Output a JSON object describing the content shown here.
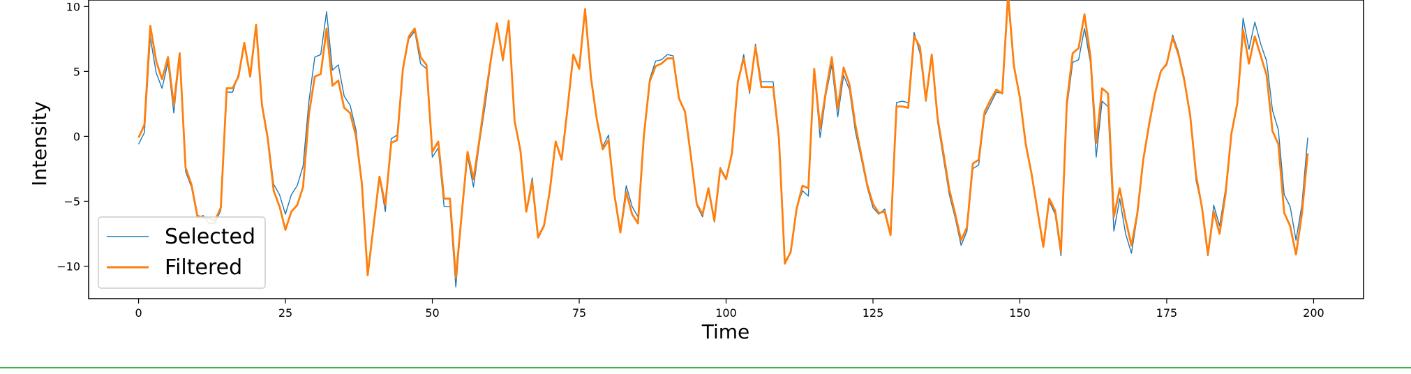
{
  "chart_data": {
    "type": "line",
    "title": "",
    "xlabel": "Time",
    "ylabel": "Intensity",
    "xlim": [
      -8.5,
      208.5
    ],
    "ylim": [
      -12.5,
      10.5
    ],
    "xticks": [
      0,
      25,
      50,
      75,
      100,
      125,
      150,
      175,
      200
    ],
    "xtick_labels": [
      "0",
      "25",
      "50",
      "75",
      "100",
      "125",
      "150",
      "175",
      "200"
    ],
    "yticks": [
      10,
      5,
      0,
      -5,
      -10
    ],
    "ytick_labels": [
      "10",
      "5",
      "0",
      "−5",
      "−10"
    ],
    "grid": false,
    "legend_position": "lower-left",
    "series": [
      {
        "name": "Selected",
        "color": "#1f77b4",
        "x": [
          0,
          1,
          2,
          3,
          4,
          5,
          6,
          7,
          8,
          9,
          10,
          11,
          12,
          13,
          14,
          15,
          16,
          17,
          18,
          19,
          20,
          21,
          22,
          23,
          24,
          25,
          26,
          27,
          28,
          29,
          30,
          31,
          32,
          33,
          34,
          35,
          36,
          37,
          38,
          39,
          40,
          41,
          42,
          43,
          44,
          45,
          46,
          47,
          48,
          49,
          50,
          51,
          52,
          53,
          54,
          55,
          56,
          57,
          58,
          59,
          60,
          61,
          62,
          63,
          64,
          65,
          66,
          67,
          68,
          69,
          70,
          71,
          72,
          73,
          74,
          75,
          76,
          77,
          78,
          79,
          80,
          81,
          82,
          83,
          84,
          85,
          86,
          87,
          88,
          89,
          90,
          91,
          92,
          93,
          94,
          95,
          96,
          97,
          98,
          99,
          100,
          101,
          102,
          103,
          104,
          105,
          106,
          107,
          108,
          109,
          110,
          111,
          112,
          113,
          114,
          115,
          116,
          117,
          118,
          119,
          120,
          121,
          122,
          123,
          124,
          125,
          126,
          127,
          128,
          129,
          130,
          131,
          132,
          133,
          134,
          135,
          136,
          137,
          138,
          139,
          140,
          141,
          142,
          143,
          144,
          145,
          146,
          147,
          148,
          149,
          150,
          151,
          152,
          153,
          154,
          155,
          156,
          157,
          158,
          159,
          160,
          161,
          162,
          163,
          164,
          165,
          166,
          167,
          168,
          169,
          170,
          171,
          172,
          173,
          174,
          175,
          176,
          177,
          178,
          179,
          180,
          181,
          182,
          183,
          184,
          185,
          186,
          187,
          188,
          189,
          190,
          191,
          192,
          193,
          194,
          195,
          196,
          197,
          198,
          199
        ],
        "y": [
          -0.6,
          0.3,
          7.6,
          4.9,
          3.7,
          5.7,
          1.8,
          6.2,
          -2.7,
          -3.9,
          -6.3,
          -6.1,
          -6.7,
          -6.7,
          -5.7,
          3.4,
          3.4,
          4.8,
          7.0,
          4.8,
          8.4,
          2.6,
          0.0,
          -3.7,
          -4.5,
          -6.0,
          -4.5,
          -3.8,
          -2.3,
          2.7,
          6.1,
          6.3,
          9.6,
          5.1,
          5.5,
          3.1,
          2.4,
          0.5,
          -3.5,
          -10.7,
          -7.0,
          -3.2,
          -5.8,
          -0.2,
          0.1,
          5.1,
          7.5,
          8.1,
          5.6,
          5.2,
          -1.6,
          -0.9,
          -5.4,
          -5.4,
          -11.6,
          -6.2,
          -1.5,
          -3.9,
          -0.6,
          2.4,
          5.8,
          8.7,
          5.8,
          8.8,
          1.1,
          -1.2,
          -5.7,
          -3.2,
          -7.7,
          -6.8,
          -4.3,
          -0.5,
          -1.7,
          2.1,
          6.3,
          5.3,
          9.8,
          4.4,
          1.4,
          -0.8,
          0.1,
          -4.6,
          -7.3,
          -3.8,
          -5.4,
          -6.2,
          0.2,
          4.4,
          5.8,
          5.9,
          6.3,
          6.2,
          3.0,
          1.9,
          -1.5,
          -5.3,
          -6.2,
          -4.0,
          -6.6,
          -2.4,
          -3.2,
          -1.4,
          4.2,
          6.3,
          3.3,
          7.1,
          4.2,
          4.2,
          4.2,
          0.1,
          -9.6,
          -9.0,
          -5.5,
          -4.2,
          -4.6,
          5.0,
          -0.1,
          3.2,
          5.5,
          1.5,
          4.7,
          3.6,
          0.4,
          -1.7,
          -3.9,
          -5.5,
          -6.0,
          -5.6,
          -7.5,
          2.6,
          2.7,
          2.6,
          8.0,
          6.4,
          2.7,
          6.2,
          1.1,
          -1.7,
          -4.5,
          -6.3,
          -8.4,
          -7.3,
          -2.5,
          -2.2,
          1.6,
          2.5,
          3.4,
          3.3,
          10.6,
          5.3,
          3.1,
          -0.4,
          -2.9,
          -5.6,
          -8.4,
          -5.0,
          -6.0,
          -9.2,
          2.2,
          5.7,
          5.9,
          8.3,
          5.7,
          -1.6,
          2.7,
          2.3,
          -7.3,
          -4.8,
          -7.5,
          -9.0,
          -6.1,
          -1.9,
          1.1,
          3.3,
          5.0,
          5.5,
          7.8,
          6.5,
          4.5,
          1.5,
          -3.4,
          -5.5,
          -9.2,
          -5.3,
          -6.9,
          -4.1,
          0.1,
          2.6,
          9.1,
          6.7,
          8.8,
          7.1,
          5.8,
          2.0,
          0.5,
          -4.5,
          -5.4,
          -8.0,
          -5.3,
          -0.1
        ]
      },
      {
        "name": "Filtered",
        "color": "#ff7f0e",
        "x": [
          0,
          1,
          2,
          3,
          4,
          5,
          6,
          7,
          8,
          9,
          10,
          11,
          12,
          13,
          14,
          15,
          16,
          17,
          18,
          19,
          20,
          21,
          22,
          23,
          24,
          25,
          26,
          27,
          28,
          29,
          30,
          31,
          32,
          33,
          34,
          35,
          36,
          37,
          38,
          39,
          40,
          41,
          42,
          43,
          44,
          45,
          46,
          47,
          48,
          49,
          50,
          51,
          52,
          53,
          54,
          55,
          56,
          57,
          58,
          59,
          60,
          61,
          62,
          63,
          64,
          65,
          66,
          67,
          68,
          69,
          70,
          71,
          72,
          73,
          74,
          75,
          76,
          77,
          78,
          79,
          80,
          81,
          82,
          83,
          84,
          85,
          86,
          87,
          88,
          89,
          90,
          91,
          92,
          93,
          94,
          95,
          96,
          97,
          98,
          99,
          100,
          101,
          102,
          103,
          104,
          105,
          106,
          107,
          108,
          109,
          110,
          111,
          112,
          113,
          114,
          115,
          116,
          117,
          118,
          119,
          120,
          121,
          122,
          123,
          124,
          125,
          126,
          127,
          128,
          129,
          130,
          131,
          132,
          133,
          134,
          135,
          136,
          137,
          138,
          139,
          140,
          141,
          142,
          143,
          144,
          145,
          146,
          147,
          148,
          149,
          150,
          151,
          152,
          153,
          154,
          155,
          156,
          157,
          158,
          159,
          160,
          161,
          162,
          163,
          164,
          165,
          166,
          167,
          168,
          169,
          170,
          171,
          172,
          173,
          174,
          175,
          176,
          177,
          178,
          179,
          180,
          181,
          182,
          183,
          184,
          185,
          186,
          187,
          188,
          189,
          190,
          191,
          192,
          193,
          194,
          195,
          196,
          197,
          198,
          199
        ],
        "y": [
          -0.1,
          0.9,
          8.5,
          5.8,
          4.4,
          6.1,
          2.4,
          6.4,
          -2.4,
          -3.7,
          -6.1,
          -6.3,
          -6.3,
          -6.5,
          -5.5,
          3.7,
          3.7,
          4.6,
          7.2,
          4.6,
          8.6,
          2.4,
          -0.2,
          -4.2,
          -5.4,
          -7.2,
          -5.8,
          -5.3,
          -3.9,
          1.7,
          4.6,
          4.8,
          8.3,
          3.9,
          4.3,
          2.2,
          1.8,
          0.0,
          -3.6,
          -10.7,
          -6.9,
          -3.1,
          -5.3,
          -0.5,
          -0.3,
          5.2,
          7.7,
          8.3,
          6.1,
          5.5,
          -1.2,
          -0.4,
          -4.8,
          -4.8,
          -10.9,
          -6.0,
          -1.2,
          -3.3,
          -0.3,
          3.0,
          6.0,
          8.7,
          5.9,
          8.9,
          1.2,
          -1.1,
          -5.8,
          -3.5,
          -7.8,
          -6.9,
          -4.2,
          -0.4,
          -1.8,
          2.1,
          6.3,
          5.2,
          9.8,
          4.5,
          1.3,
          -1.0,
          -0.3,
          -4.5,
          -7.4,
          -4.3,
          -6.0,
          -6.7,
          0.0,
          4.2,
          5.4,
          5.6,
          6.0,
          6.0,
          2.9,
          1.9,
          -1.5,
          -5.2,
          -6.0,
          -4.0,
          -6.5,
          -2.5,
          -3.3,
          -1.3,
          4.2,
          6.0,
          3.5,
          6.9,
          3.8,
          3.8,
          3.8,
          -0.2,
          -9.8,
          -8.9,
          -5.6,
          -3.8,
          -4.0,
          5.2,
          0.6,
          3.5,
          6.1,
          2.1,
          5.3,
          4.0,
          0.9,
          -1.4,
          -3.7,
          -5.2,
          -5.9,
          -5.8,
          -7.6,
          2.3,
          2.3,
          2.2,
          7.7,
          6.9,
          2.8,
          6.3,
          1.4,
          -1.3,
          -4.1,
          -6.0,
          -8.0,
          -7.0,
          -2.1,
          -1.8,
          1.9,
          2.8,
          3.6,
          3.3,
          10.9,
          5.4,
          3.0,
          -0.6,
          -2.9,
          -5.7,
          -8.5,
          -4.8,
          -5.7,
          -8.9,
          2.6,
          6.4,
          6.8,
          9.4,
          6.2,
          -0.5,
          3.7,
          3.3,
          -6.2,
          -4.0,
          -6.4,
          -8.4,
          -5.9,
          -1.8,
          0.9,
          3.3,
          5.0,
          5.6,
          7.6,
          6.3,
          4.3,
          1.6,
          -3.0,
          -5.5,
          -9.1,
          -5.8,
          -7.5,
          -4.5,
          0.2,
          2.5,
          8.2,
          5.6,
          7.7,
          6.2,
          4.7,
          0.4,
          -0.6,
          -5.9,
          -6.9,
          -9.1,
          -6.0,
          -1.3
        ]
      }
    ]
  }
}
